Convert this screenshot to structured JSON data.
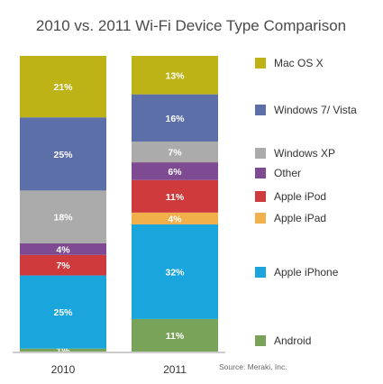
{
  "chart_data": {
    "type": "bar",
    "stacked": true,
    "normalized": true,
    "title": "2010 vs. 2011 Wi-Fi Device Type Comparison",
    "categories": [
      "2010",
      "2011"
    ],
    "series": [
      {
        "name": "Android",
        "color": "#7aa35a",
        "values": [
          1,
          11
        ],
        "labels": [
          "1%",
          "11%"
        ]
      },
      {
        "name": "Apple iPhone",
        "color": "#1aa6dc",
        "values": [
          25,
          32
        ],
        "labels": [
          "25%",
          "32%"
        ]
      },
      {
        "name": "Apple iPad",
        "color": "#f2b04a",
        "values": [
          0,
          4
        ],
        "labels": [
          "",
          "4%"
        ]
      },
      {
        "name": "Apple iPod",
        "color": "#cf3a3c",
        "values": [
          7,
          11
        ],
        "labels": [
          "7%",
          "11%"
        ]
      },
      {
        "name": "Other",
        "color": "#7e4b92",
        "values": [
          4,
          6
        ],
        "labels": [
          "4%",
          "6%"
        ]
      },
      {
        "name": "Windows XP",
        "color": "#ababab",
        "values": [
          18,
          7
        ],
        "labels": [
          "18%",
          "7%"
        ]
      },
      {
        "name": "Windows 7/ Vista",
        "color": "#5c6fa8",
        "values": [
          25,
          16
        ],
        "labels": [
          "25%",
          "16%"
        ]
      },
      {
        "name": "Mac OS X",
        "color": "#bdb316",
        "values": [
          21,
          13
        ],
        "labels": [
          "21%",
          "13%"
        ]
      }
    ],
    "legend_order": [
      "Mac OS X",
      "Windows 7/ Vista",
      "Windows XP",
      "Other",
      "Apple iPod",
      "Apple iPad",
      "Apple iPhone",
      "Android"
    ],
    "legend_position": "right",
    "grid": false,
    "annotation": "Source: Meraki, Inc."
  }
}
